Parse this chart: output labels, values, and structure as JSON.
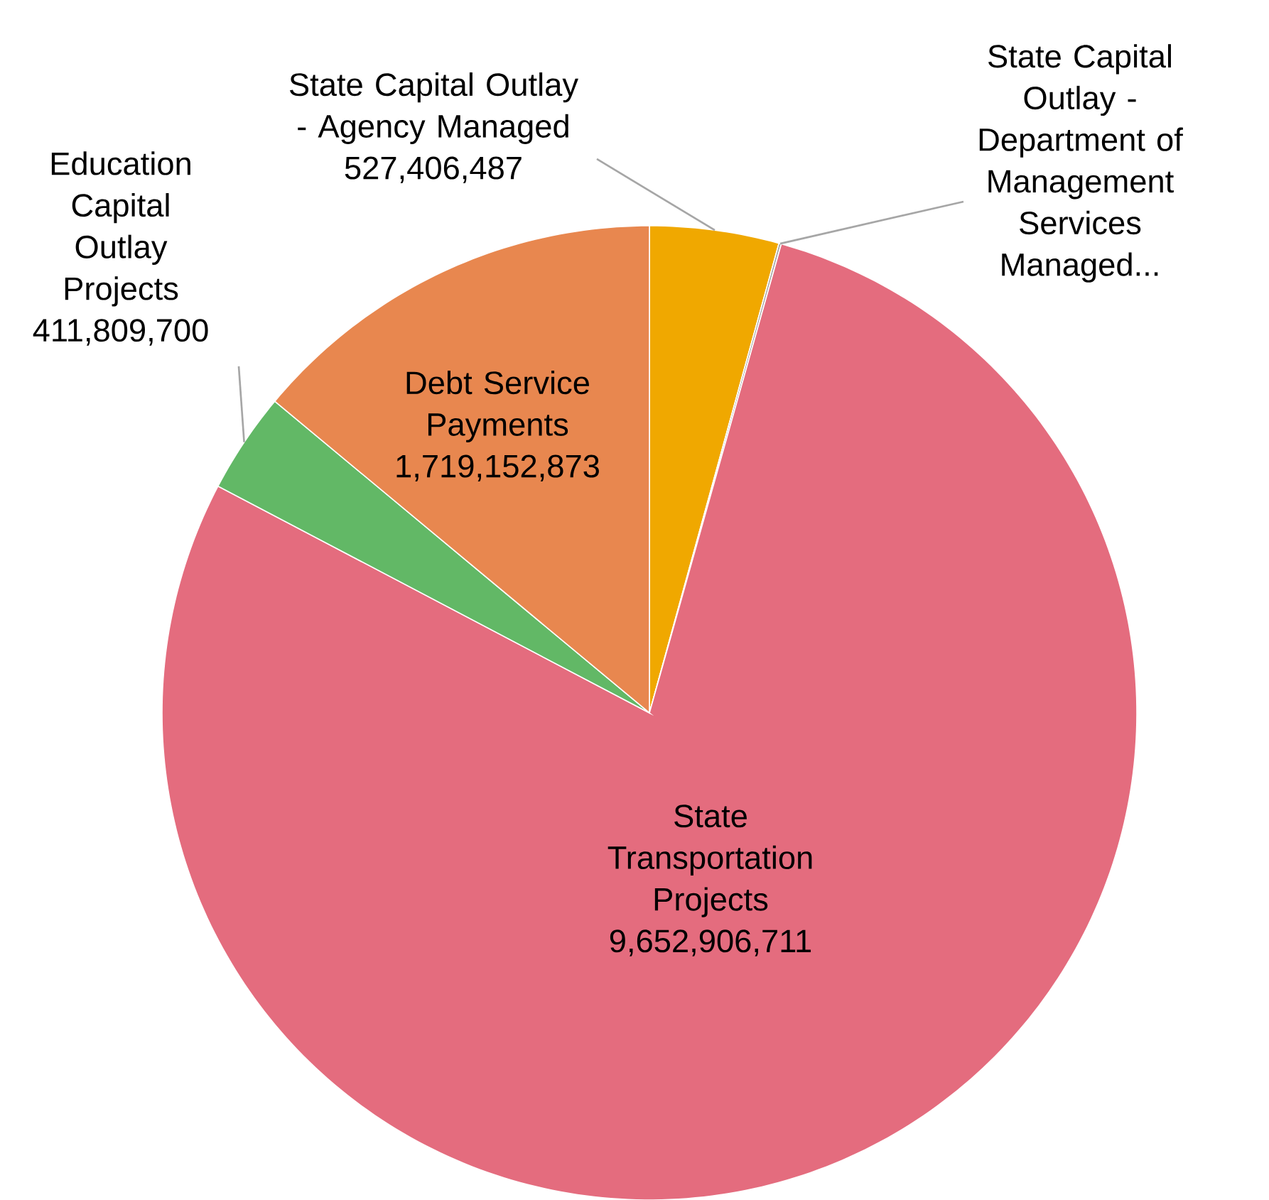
{
  "chart_data": {
    "type": "pie",
    "categories": [
      "State Capital Outlay - Agency Managed",
      "State Capital Outlay - Department of Management Services Managed...",
      "State Transportation Projects",
      "Education Capital Outlay Projects",
      "Debt Service Payments"
    ],
    "values": [
      527406487,
      10000000,
      9652906711,
      411809700,
      1719152873
    ],
    "colors": [
      "#f0a800",
      "#a5a5a5",
      "#e46c7e",
      "#62b866",
      "#e8874f"
    ],
    "value_labels": [
      "527,406,487",
      null,
      "9,652,906,711",
      "411,809,700",
      "1,719,152,873"
    ]
  }
}
